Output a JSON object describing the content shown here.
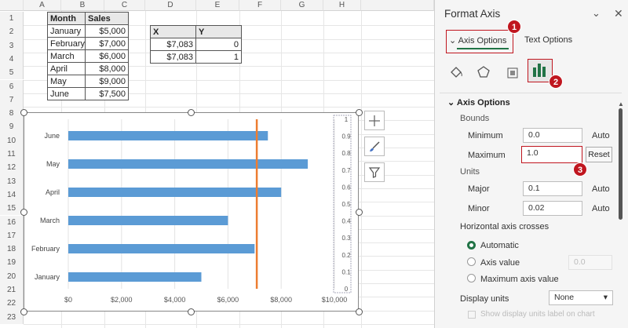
{
  "columns": [
    "A",
    "B",
    "C",
    "D",
    "E",
    "F",
    "G",
    "H"
  ],
  "rows": [
    "1",
    "2",
    "3",
    "4",
    "5",
    "6",
    "7",
    "8",
    "9",
    "10",
    "11",
    "12",
    "13",
    "14",
    "15",
    "16",
    "17",
    "18",
    "19",
    "20",
    "21",
    "22",
    "23"
  ],
  "table1": {
    "headers": [
      "Month",
      "Sales"
    ],
    "rows": [
      [
        "January",
        "$5,000"
      ],
      [
        "February",
        "$7,000"
      ],
      [
        "March",
        "$6,000"
      ],
      [
        "April",
        "$8,000"
      ],
      [
        "May",
        "$9,000"
      ],
      [
        "June",
        "$7,500"
      ]
    ]
  },
  "table2": {
    "headers": [
      "X",
      "Y"
    ],
    "rows": [
      [
        "$7,083",
        "0"
      ],
      [
        "$7,083",
        "1"
      ]
    ]
  },
  "chart_data": {
    "type": "bar",
    "orientation": "horizontal",
    "categories": [
      "June",
      "May",
      "April",
      "March",
      "February",
      "January"
    ],
    "series": [
      {
        "values": [
          7500,
          9000,
          8000,
          6000,
          7000,
          5000
        ],
        "color": "#5b9bd5"
      }
    ],
    "vertical_line": {
      "x": 7083,
      "y": [
        0,
        1
      ],
      "color": "#ed7d31"
    },
    "xlim": [
      0,
      10000
    ],
    "x_ticks": [
      "$0",
      "$2,000",
      "$4,000",
      "$6,000",
      "$8,000",
      "$10,000"
    ],
    "secondary_ylim": [
      0,
      1
    ],
    "secondary_y_ticks": [
      "0",
      "0.1",
      "0.2",
      "0.3",
      "0.4",
      "0.5",
      "0.6",
      "0.7",
      "0.8",
      "0.9",
      "1"
    ],
    "grid": "vertical"
  },
  "chart_buttons": [
    "plus-icon",
    "brush-icon",
    "filter-icon"
  ],
  "pane": {
    "title": "Format Axis",
    "tabs": [
      "Axis Options",
      "Text Options"
    ],
    "section": "Axis Options",
    "bounds_label": "Bounds",
    "minimum": {
      "label": "Minimum",
      "value": "0.0",
      "action": "Auto"
    },
    "maximum": {
      "label": "Maximum",
      "value": "1.0",
      "action": "Reset"
    },
    "units_label": "Units",
    "major": {
      "label": "Major",
      "value": "0.1",
      "action": "Auto"
    },
    "minor": {
      "label": "Minor",
      "value": "0.02",
      "action": "Auto"
    },
    "crosses_label": "Horizontal axis crosses",
    "radios": [
      "Automatic",
      "Axis value",
      "Maximum axis value"
    ],
    "axis_value": "0.0",
    "display_units_label": "Display units",
    "display_units": "None",
    "show_label": "Show display units label on chart",
    "badges": [
      "1",
      "2",
      "3"
    ],
    "accent": "#217346",
    "badge_color": "#c0161f"
  }
}
